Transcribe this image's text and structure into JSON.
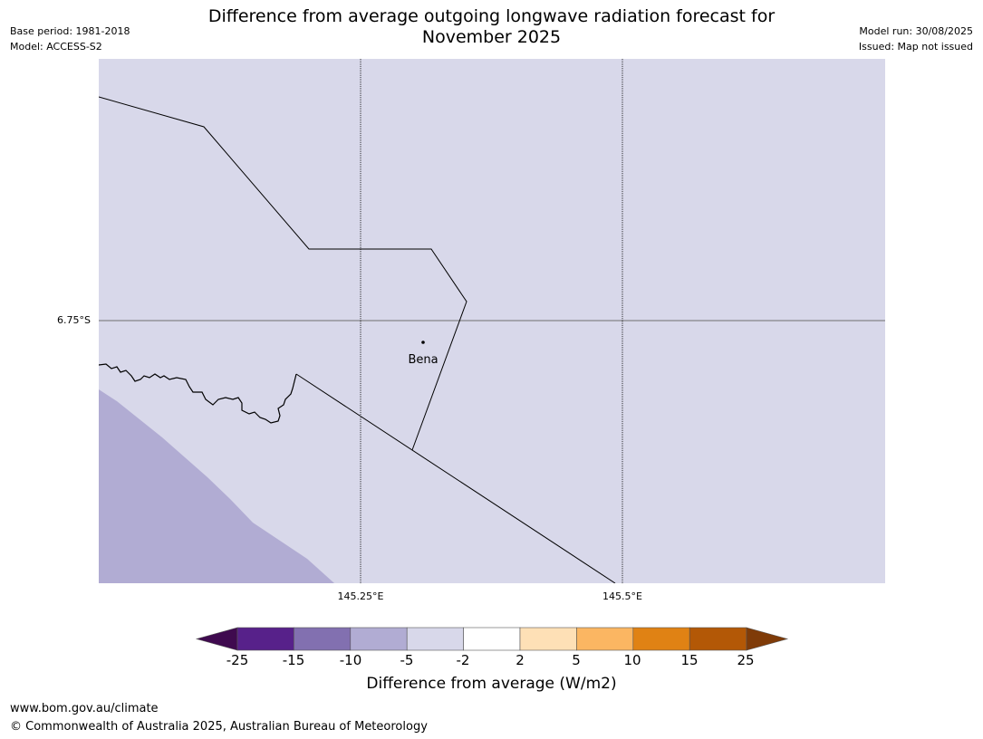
{
  "header": {
    "title_line1": "Difference from average outgoing longwave radiation forecast for",
    "title_line2": "November 2025",
    "base_period": "Base period: 1981-2018",
    "model": "Model: ACCESS-S2",
    "model_run": "Model run: 30/08/2025",
    "issued": "Issued: Map not issued"
  },
  "map": {
    "lat_label": "6.75°S",
    "lon_labels": [
      "145.25°E",
      "145.5°E"
    ],
    "place_label": "Bena",
    "background_color": "#d8d8ea",
    "anomaly_area_color": "#b1acd3",
    "anomaly_area_class": "-10 to -5"
  },
  "colorbar": {
    "title": "Difference from average (W/m2)",
    "tick_labels": [
      "-25",
      "-15",
      "-10",
      "-5",
      "-2",
      "2",
      "5",
      "10",
      "15",
      "25"
    ],
    "colors": [
      "#3f0a4f",
      "#57218a",
      "#8270b0",
      "#b1acd3",
      "#d8d8ea",
      "#ffffff",
      "#fee0b6",
      "#fbb662",
      "#e08214",
      "#b35806",
      "#7f3b08"
    ]
  },
  "footer": {
    "url": "www.bom.gov.au/climate",
    "copyright": "© Commonwealth of Australia 2025, Australian Bureau of Meteorology"
  }
}
